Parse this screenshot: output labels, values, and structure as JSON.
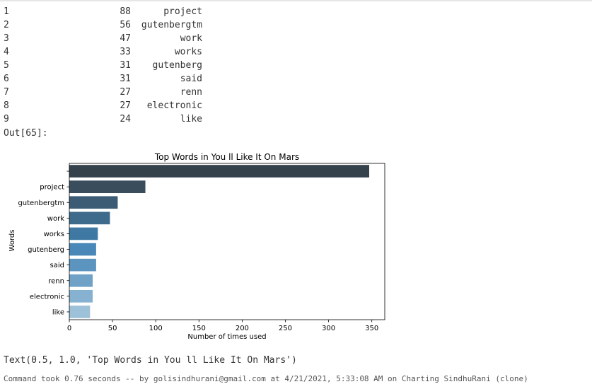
{
  "table": {
    "rows": [
      {
        "index": "1",
        "count": "88",
        "word": "project"
      },
      {
        "index": "2",
        "count": "56",
        "word": "gutenbergtm"
      },
      {
        "index": "3",
        "count": "47",
        "word": "work"
      },
      {
        "index": "4",
        "count": "33",
        "word": "works"
      },
      {
        "index": "5",
        "count": "31",
        "word": "gutenberg"
      },
      {
        "index": "6",
        "count": "31",
        "word": "said"
      },
      {
        "index": "7",
        "count": "27",
        "word": "renn"
      },
      {
        "index": "8",
        "count": "27",
        "word": "electronic"
      },
      {
        "index": "9",
        "count": "24",
        "word": "like"
      }
    ]
  },
  "output_label": "Out[65]:",
  "chart_data": {
    "type": "bar",
    "orientation": "horizontal",
    "title": "Top Words in You ll Like It On Mars",
    "xlabel": "Number of times used",
    "ylabel": "Words",
    "categories": [
      "",
      "project",
      "gutenbergtm",
      "work",
      "works",
      "gutenberg",
      "said",
      "renn",
      "electronic",
      "like"
    ],
    "values": [
      347,
      88,
      56,
      47,
      33,
      31,
      31,
      27,
      27,
      24
    ],
    "xlim": [
      0,
      365
    ],
    "xticks": [
      0,
      50,
      100,
      150,
      200,
      250,
      300,
      350
    ],
    "grid": false,
    "legend": "none",
    "colors": [
      "#35414b",
      "#394d5d",
      "#3c5c75",
      "#3e6a8b",
      "#3f79a3",
      "#4887b8",
      "#5c94c0",
      "#70a2c8",
      "#86b1d0",
      "#9dc1d8"
    ]
  },
  "text_output": "Text(0.5, 1.0, 'Top Words in You ll Like It On Mars')",
  "command_status": "Command took 0.76 seconds -- by golisindhurani@gmail.com at 4/21/2021, 5:33:08 AM on Charting SindhuRani (clone)"
}
